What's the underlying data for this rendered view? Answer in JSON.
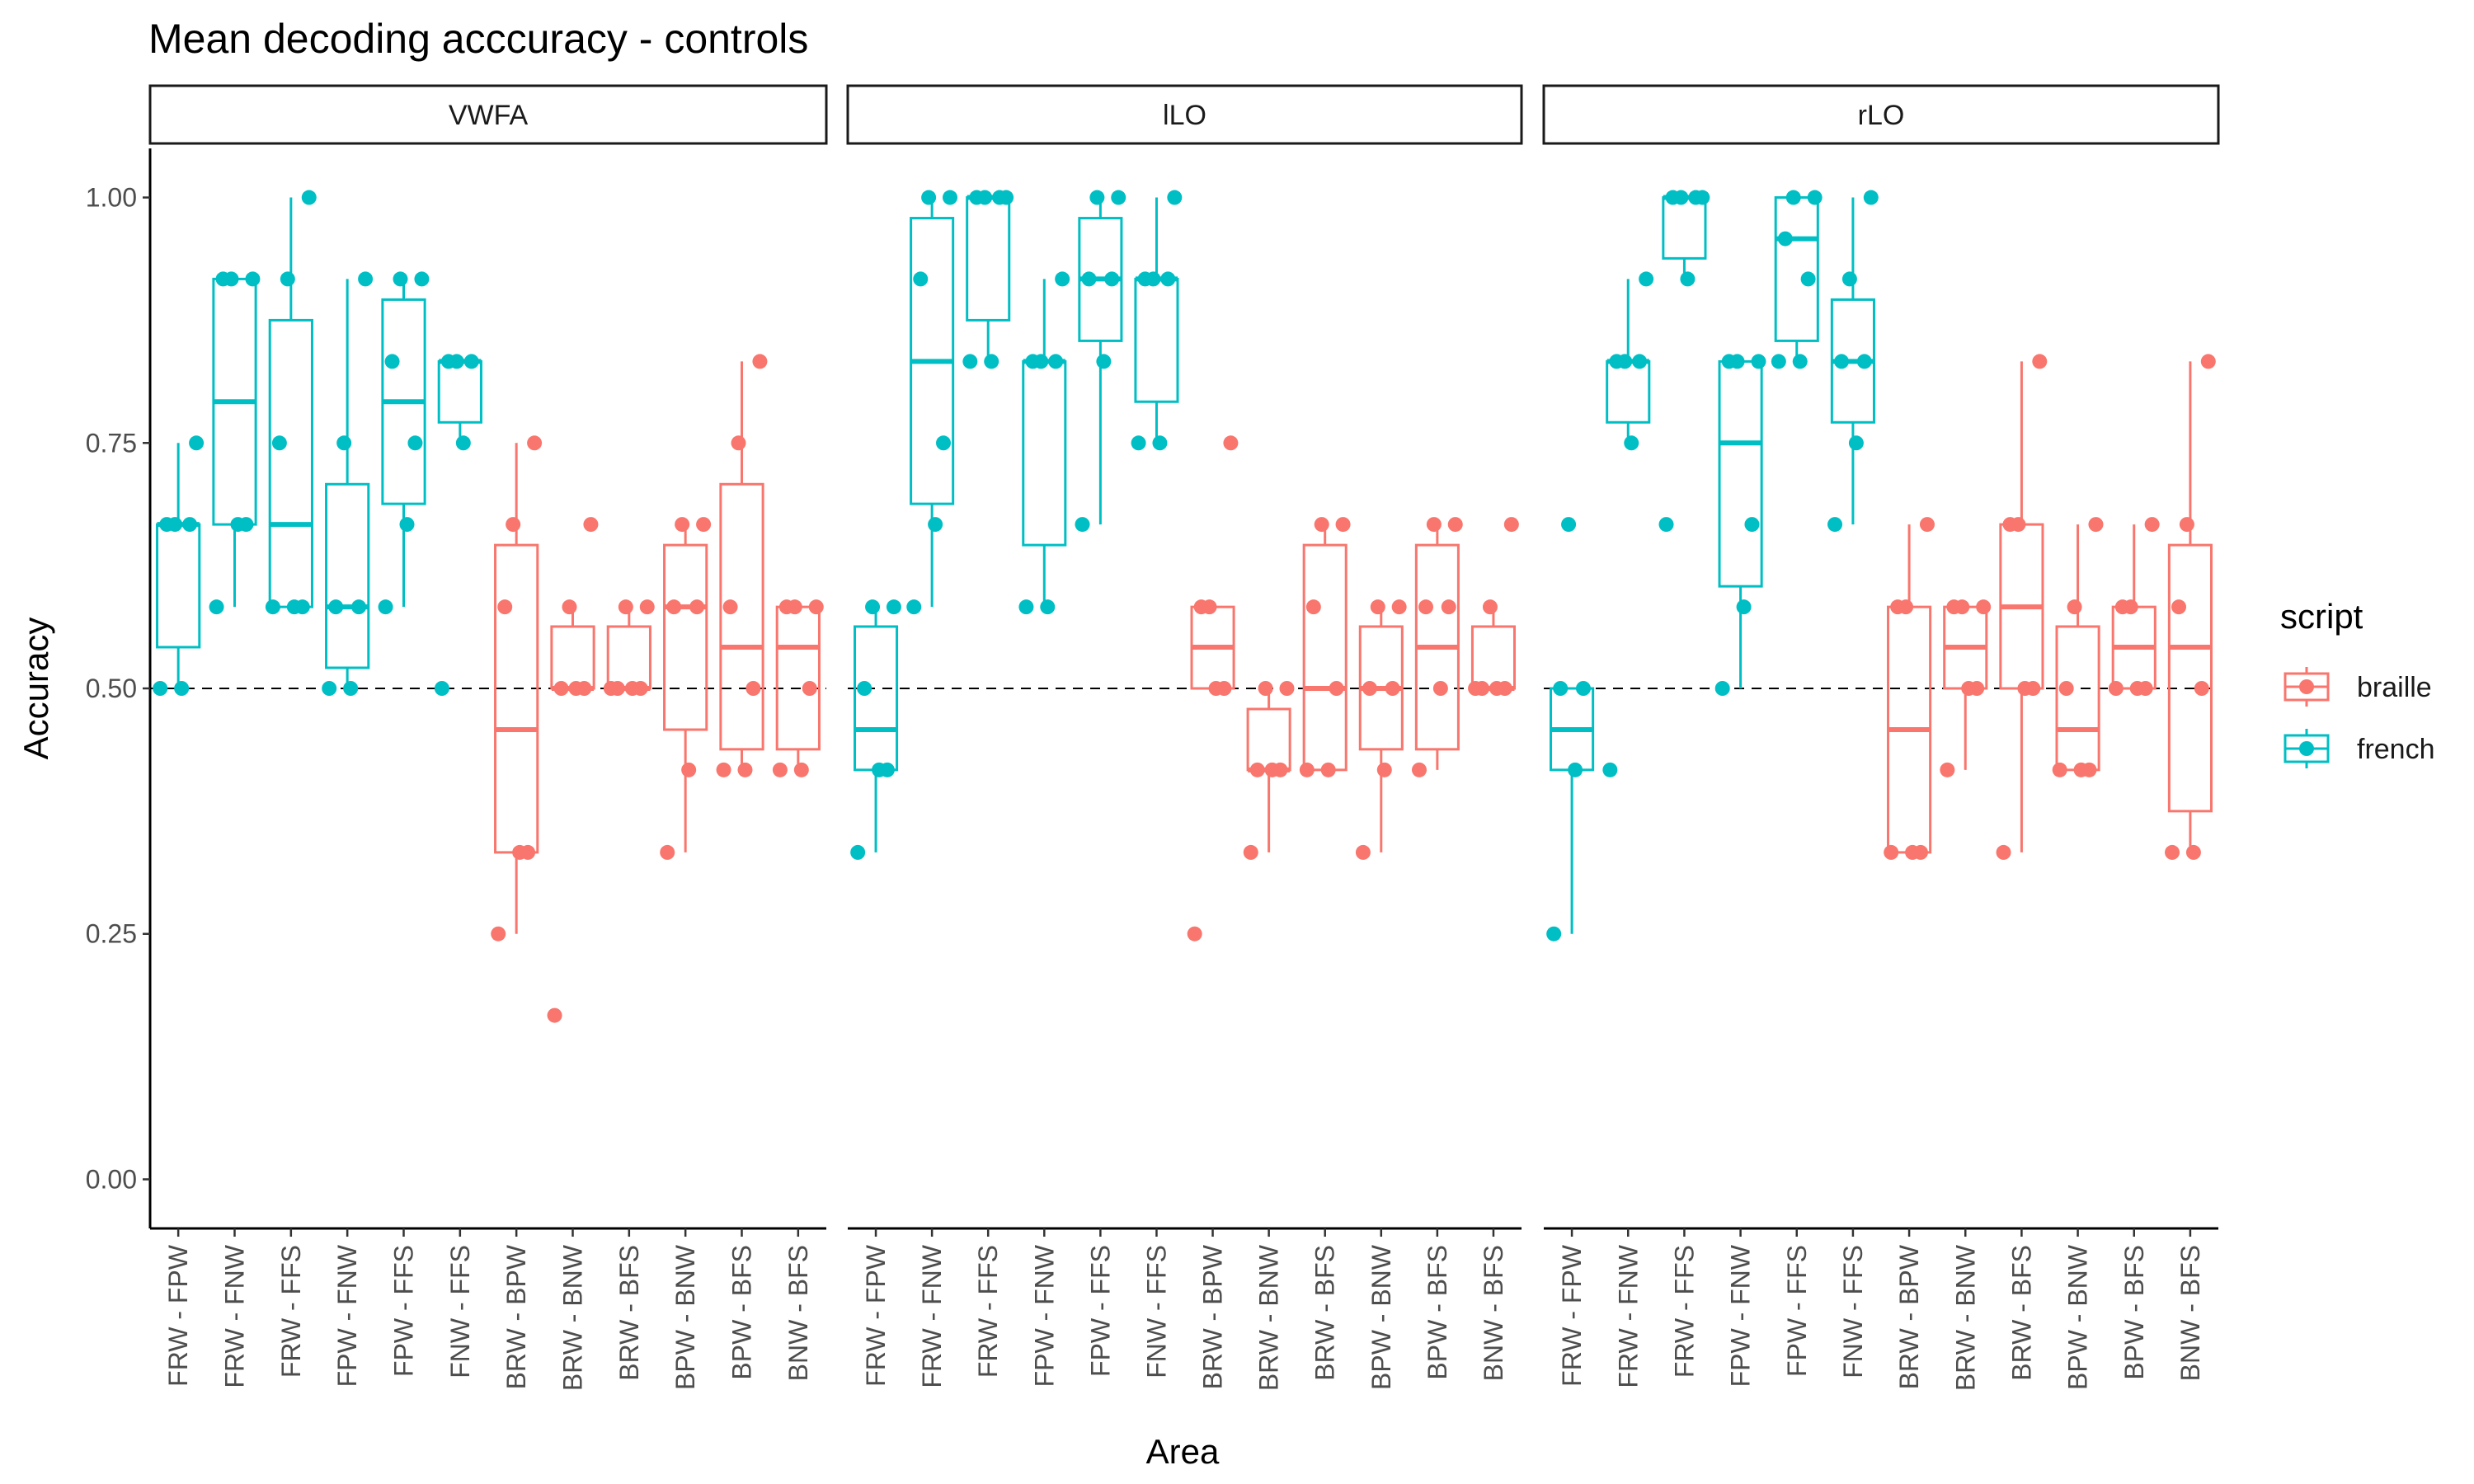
{
  "chart_data": {
    "type": "boxplot",
    "title": "Mean decoding acccuracy - controls",
    "xlabel": "Area",
    "ylabel": "Accuracy",
    "ylim": [
      -0.05,
      1.05
    ],
    "yticks": [
      0.0,
      0.25,
      0.5,
      0.75,
      1.0
    ],
    "ytick_labels": [
      "0.00",
      "0.25",
      "0.50",
      "0.75",
      "1.00"
    ],
    "reference_line": 0.5,
    "categories": [
      "FRW - FPW",
      "FRW - FNW",
      "FRW - FFS",
      "FPW - FNW",
      "FPW - FFS",
      "FNW - FFS",
      "BRW - BPW",
      "BRW - BNW",
      "BRW - BFS",
      "BPW - BNW",
      "BPW - BFS",
      "BNW - BFS"
    ],
    "category_script": [
      "french",
      "french",
      "french",
      "french",
      "french",
      "french",
      "braille",
      "braille",
      "braille",
      "braille",
      "braille",
      "braille"
    ],
    "legend": {
      "title": "script",
      "placement": "right",
      "entries": [
        {
          "label": "braille",
          "color": "#F8766D"
        },
        {
          "label": "french",
          "color": "#00BFC4"
        }
      ]
    },
    "facets": [
      {
        "name": "VWFA",
        "boxes": [
          {
            "min": 0.5,
            "q1": 0.542,
            "median": 0.667,
            "q3": 0.667,
            "max": 0.75
          },
          {
            "min": 0.583,
            "q1": 0.667,
            "median": 0.792,
            "q3": 0.917,
            "max": 0.917
          },
          {
            "min": 0.583,
            "q1": 0.583,
            "median": 0.667,
            "q3": 0.875,
            "max": 1.0
          },
          {
            "min": 0.5,
            "q1": 0.521,
            "median": 0.583,
            "q3": 0.708,
            "max": 0.917
          },
          {
            "min": 0.583,
            "q1": 0.688,
            "median": 0.792,
            "q3": 0.896,
            "max": 0.917
          },
          {
            "min": 0.75,
            "q1": 0.771,
            "median": 0.833,
            "q3": 0.833,
            "max": 0.833
          },
          {
            "min": 0.25,
            "q1": 0.333,
            "median": 0.458,
            "q3": 0.646,
            "max": 0.75
          },
          {
            "min": 0.5,
            "q1": 0.5,
            "median": 0.5,
            "q3": 0.563,
            "max": 0.583
          },
          {
            "min": 0.5,
            "q1": 0.5,
            "median": 0.5,
            "q3": 0.563,
            "max": 0.583
          },
          {
            "min": 0.333,
            "q1": 0.458,
            "median": 0.583,
            "q3": 0.646,
            "max": 0.667
          },
          {
            "min": 0.417,
            "q1": 0.438,
            "median": 0.542,
            "q3": 0.708,
            "max": 0.833
          },
          {
            "min": 0.417,
            "q1": 0.438,
            "median": 0.542,
            "q3": 0.583,
            "max": 0.583
          }
        ],
        "points": [
          [
            0.5,
            0.5,
            0.667,
            0.667,
            0.667,
            0.75
          ],
          [
            0.583,
            0.667,
            0.667,
            0.917,
            0.917,
            0.917
          ],
          [
            0.583,
            0.583,
            0.583,
            0.75,
            0.917,
            1.0
          ],
          [
            0.5,
            0.5,
            0.583,
            0.583,
            0.75,
            0.917
          ],
          [
            0.583,
            0.667,
            0.75,
            0.833,
            0.917,
            0.917
          ],
          [
            0.5,
            0.75,
            0.833,
            0.833,
            0.833
          ],
          [
            0.25,
            0.333,
            0.333,
            0.583,
            0.667,
            0.75
          ],
          [
            0.167,
            0.5,
            0.5,
            0.5,
            0.583,
            0.667
          ],
          [
            0.5,
            0.5,
            0.5,
            0.5,
            0.583,
            0.583
          ],
          [
            0.333,
            0.417,
            0.583,
            0.583,
            0.667,
            0.667
          ],
          [
            0.417,
            0.417,
            0.5,
            0.583,
            0.75,
            0.833
          ],
          [
            0.417,
            0.417,
            0.5,
            0.583,
            0.583,
            0.583
          ]
        ]
      },
      {
        "name": "lLO",
        "boxes": [
          {
            "min": 0.333,
            "q1": 0.417,
            "median": 0.458,
            "q3": 0.563,
            "max": 0.583
          },
          {
            "min": 0.583,
            "q1": 0.688,
            "median": 0.833,
            "q3": 0.979,
            "max": 1.0
          },
          {
            "min": 0.833,
            "q1": 0.875,
            "median": 1.0,
            "q3": 1.0,
            "max": 1.0
          },
          {
            "min": 0.583,
            "q1": 0.646,
            "median": 0.833,
            "q3": 0.833,
            "max": 0.917
          },
          {
            "min": 0.667,
            "q1": 0.854,
            "median": 0.917,
            "q3": 0.979,
            "max": 1.0
          },
          {
            "min": 0.75,
            "q1": 0.792,
            "median": 0.917,
            "q3": 0.917,
            "max": 1.0
          },
          {
            "min": 0.5,
            "q1": 0.5,
            "median": 0.542,
            "q3": 0.583,
            "max": 0.583
          },
          {
            "min": 0.333,
            "q1": 0.417,
            "median": 0.417,
            "q3": 0.479,
            "max": 0.5
          },
          {
            "min": 0.417,
            "q1": 0.417,
            "median": 0.5,
            "q3": 0.646,
            "max": 0.667
          },
          {
            "min": 0.333,
            "q1": 0.438,
            "median": 0.5,
            "q3": 0.563,
            "max": 0.583
          },
          {
            "min": 0.417,
            "q1": 0.438,
            "median": 0.542,
            "q3": 0.646,
            "max": 0.667
          },
          {
            "min": 0.5,
            "q1": 0.5,
            "median": 0.5,
            "q3": 0.563,
            "max": 0.583
          }
        ],
        "points": [
          [
            0.333,
            0.417,
            0.417,
            0.5,
            0.583,
            0.583
          ],
          [
            0.583,
            0.667,
            0.75,
            0.917,
            1.0,
            1.0
          ],
          [
            0.833,
            0.833,
            1.0,
            1.0,
            1.0,
            1.0
          ],
          [
            0.583,
            0.583,
            0.833,
            0.833,
            0.833,
            0.917
          ],
          [
            0.667,
            0.833,
            0.917,
            0.917,
            1.0,
            1.0
          ],
          [
            0.75,
            0.75,
            0.917,
            0.917,
            0.917,
            1.0
          ],
          [
            0.25,
            0.5,
            0.5,
            0.583,
            0.583,
            0.75
          ],
          [
            0.333,
            0.417,
            0.417,
            0.417,
            0.5,
            0.5
          ],
          [
            0.417,
            0.417,
            0.5,
            0.583,
            0.667,
            0.667
          ],
          [
            0.333,
            0.417,
            0.5,
            0.5,
            0.583,
            0.583
          ],
          [
            0.417,
            0.5,
            0.583,
            0.583,
            0.667,
            0.667
          ],
          [
            0.5,
            0.5,
            0.5,
            0.5,
            0.583,
            0.667
          ]
        ]
      },
      {
        "name": "rLO",
        "boxes": [
          {
            "min": 0.25,
            "q1": 0.417,
            "median": 0.458,
            "q3": 0.5,
            "max": 0.5
          },
          {
            "min": 0.75,
            "q1": 0.771,
            "median": 0.833,
            "q3": 0.833,
            "max": 0.917
          },
          {
            "min": 0.917,
            "q1": 0.938,
            "median": 1.0,
            "q3": 1.0,
            "max": 1.0
          },
          {
            "min": 0.5,
            "q1": 0.604,
            "median": 0.75,
            "q3": 0.833,
            "max": 0.833
          },
          {
            "min": 0.833,
            "q1": 0.854,
            "median": 0.958,
            "q3": 1.0,
            "max": 1.0
          },
          {
            "min": 0.667,
            "q1": 0.771,
            "median": 0.833,
            "q3": 0.896,
            "max": 1.0
          },
          {
            "min": 0.333,
            "q1": 0.333,
            "median": 0.458,
            "q3": 0.583,
            "max": 0.667
          },
          {
            "min": 0.417,
            "q1": 0.5,
            "median": 0.542,
            "q3": 0.583,
            "max": 0.583
          },
          {
            "min": 0.333,
            "q1": 0.5,
            "median": 0.583,
            "q3": 0.667,
            "max": 0.833
          },
          {
            "min": 0.417,
            "q1": 0.417,
            "median": 0.458,
            "q3": 0.563,
            "max": 0.667
          },
          {
            "min": 0.5,
            "q1": 0.5,
            "median": 0.542,
            "q3": 0.583,
            "max": 0.667
          },
          {
            "min": 0.333,
            "q1": 0.375,
            "median": 0.542,
            "q3": 0.646,
            "max": 0.833
          }
        ],
        "points": [
          [
            0.25,
            0.417,
            0.5,
            0.5,
            0.667
          ],
          [
            0.417,
            0.75,
            0.833,
            0.833,
            0.833,
            0.917
          ],
          [
            0.667,
            0.917,
            1.0,
            1.0,
            1.0,
            1.0
          ],
          [
            0.5,
            0.583,
            0.667,
            0.833,
            0.833,
            0.833
          ],
          [
            0.833,
            0.833,
            0.917,
            0.958,
            1.0,
            1.0
          ],
          [
            0.667,
            0.75,
            0.833,
            0.833,
            0.917,
            1.0
          ],
          [
            0.333,
            0.333,
            0.333,
            0.583,
            0.583,
            0.667
          ],
          [
            0.417,
            0.5,
            0.5,
            0.583,
            0.583,
            0.583
          ],
          [
            0.333,
            0.5,
            0.5,
            0.667,
            0.667,
            0.833
          ],
          [
            0.417,
            0.417,
            0.417,
            0.5,
            0.583,
            0.667
          ],
          [
            0.5,
            0.5,
            0.5,
            0.583,
            0.583,
            0.667
          ],
          [
            0.333,
            0.333,
            0.5,
            0.583,
            0.667,
            0.833
          ]
        ]
      }
    ]
  }
}
